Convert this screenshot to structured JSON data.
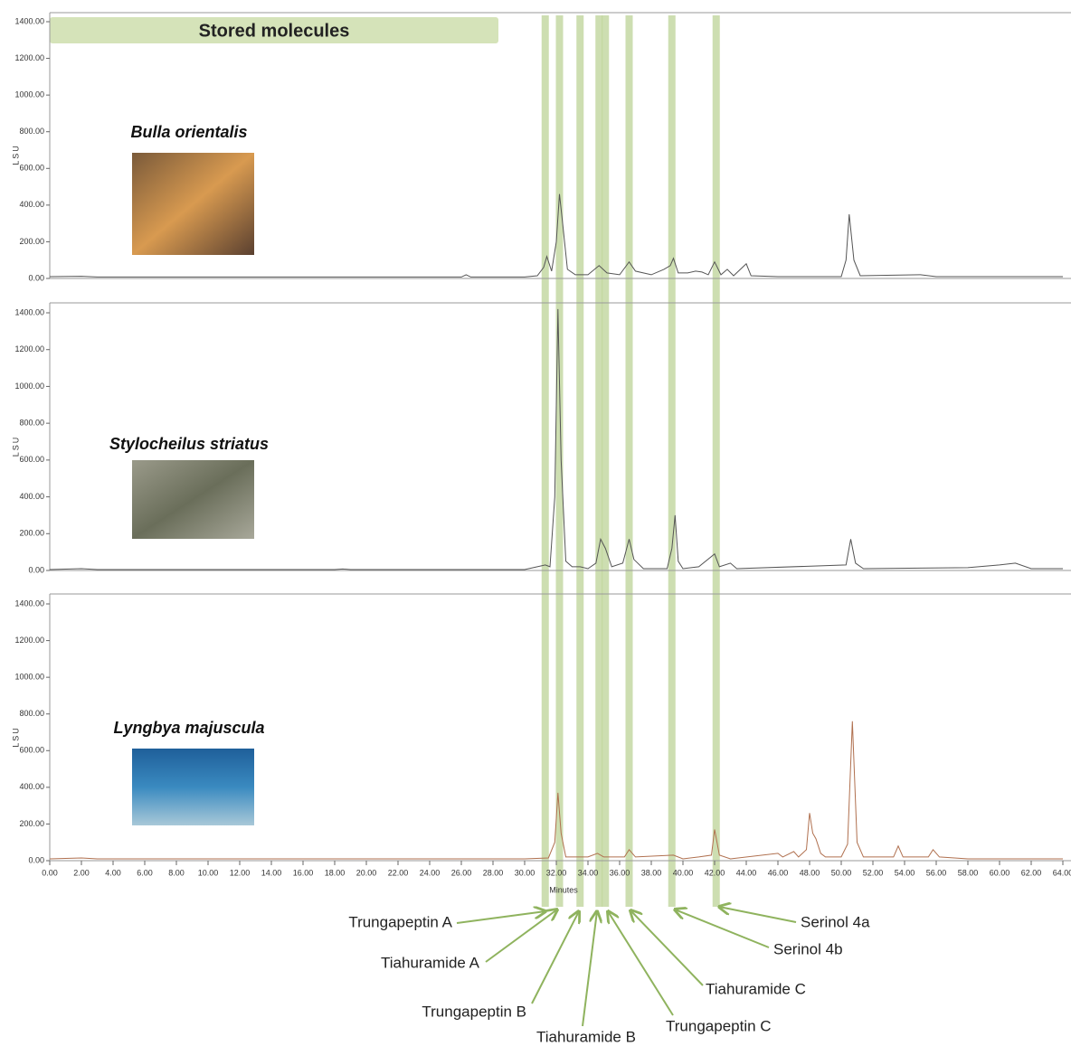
{
  "banner": "Stored molecules",
  "band_color": "#bcd397",
  "arrow_color": "#8fb35e",
  "compounds": [
    {
      "name": "Trungapeptin A",
      "time": 31.3
    },
    {
      "name": "Tiahuramide A",
      "time": 32.2
    },
    {
      "name": "Trungapeptin B",
      "time": 33.5
    },
    {
      "name": "Tiahuramide B",
      "time": 34.7
    },
    {
      "name": "Trungapeptin C",
      "time": 35.1
    },
    {
      "name": "Tiahuramide C",
      "time": 36.6
    },
    {
      "name": "Serinol 4b",
      "time": 39.3
    },
    {
      "name": "Serinol 4a",
      "time": 42.1
    }
  ],
  "chart_data": [
    {
      "type": "line",
      "title": "Bulla orientalis",
      "ylabel": "LSU",
      "color": "#555555",
      "xlim": [
        0,
        64
      ],
      "ylim": [
        0,
        1400
      ],
      "yticks": [
        {
          "value": 0,
          "label": "0.00"
        },
        {
          "value": 200,
          "label": "200.00"
        },
        {
          "value": 400,
          "label": "400.00"
        },
        {
          "value": 600,
          "label": "600.00"
        },
        {
          "value": 800,
          "label": "800.00"
        },
        {
          "value": 1000,
          "label": "1000.00"
        },
        {
          "value": 1200,
          "label": "1200.00"
        },
        {
          "value": 1400,
          "label": "1400.00"
        }
      ],
      "x": [
        0,
        2,
        3,
        10,
        20,
        26,
        26.3,
        26.6,
        30,
        30.8,
        31.2,
        31.4,
        31.7,
        32,
        32.2,
        32.4,
        32.7,
        33.2,
        34,
        34.7,
        35.2,
        36,
        36.6,
        37,
        38,
        38.8,
        39.2,
        39.4,
        39.7,
        40.3,
        40.8,
        41.2,
        41.6,
        42,
        42.4,
        42.8,
        43.2,
        44,
        44.3,
        46,
        50,
        50.3,
        50.5,
        50.8,
        51.2,
        55,
        56,
        64
      ],
      "values": [
        10,
        12,
        8,
        8,
        8,
        8,
        20,
        8,
        8,
        15,
        60,
        120,
        40,
        200,
        460,
        300,
        50,
        20,
        20,
        70,
        30,
        20,
        90,
        40,
        20,
        50,
        70,
        110,
        30,
        30,
        40,
        35,
        20,
        90,
        20,
        50,
        15,
        80,
        15,
        10,
        10,
        100,
        350,
        100,
        15,
        20,
        10,
        10
      ]
    },
    {
      "type": "line",
      "title": "Stylocheilus striatus",
      "ylabel": "LSU",
      "color": "#555555",
      "xlim": [
        0,
        64
      ],
      "ylim": [
        0,
        1400
      ],
      "yticks": [
        {
          "value": 0,
          "label": "0.00"
        },
        {
          "value": 200,
          "label": "200.00"
        },
        {
          "value": 400,
          "label": "400.00"
        },
        {
          "value": 600,
          "label": "600.00"
        },
        {
          "value": 800,
          "label": "800.00"
        },
        {
          "value": 1000,
          "label": "1000.00"
        },
        {
          "value": 1200,
          "label": "1200.00"
        },
        {
          "value": 1400,
          "label": "1400.00"
        }
      ],
      "x": [
        0,
        2,
        3,
        18,
        18.5,
        19,
        30,
        30.8,
        31.3,
        31.6,
        31.9,
        32.1,
        32.3,
        32.6,
        33,
        33.5,
        34,
        34.5,
        34.8,
        35.1,
        35.5,
        36.2,
        36.6,
        36.9,
        37.5,
        39,
        39.3,
        39.5,
        39.7,
        40,
        41,
        42,
        42.3,
        43,
        43.4,
        50.3,
        50.6,
        50.9,
        51.4,
        58,
        60,
        61,
        62,
        64
      ],
      "values": [
        5,
        10,
        5,
        5,
        8,
        5,
        5,
        20,
        30,
        20,
        400,
        1420,
        600,
        50,
        20,
        20,
        10,
        40,
        170,
        120,
        20,
        40,
        170,
        60,
        10,
        10,
        120,
        300,
        50,
        10,
        20,
        90,
        20,
        40,
        10,
        30,
        170,
        40,
        10,
        15,
        30,
        40,
        10,
        10
      ]
    },
    {
      "type": "line",
      "title": "Lyngbya majuscula",
      "ylabel": "LSU",
      "xlabel": "Minutes",
      "color": "#b0704f",
      "xlim": [
        0,
        64
      ],
      "ylim": [
        0,
        1400
      ],
      "yticks": [
        {
          "value": 0,
          "label": "0.00"
        },
        {
          "value": 200,
          "label": "200.00"
        },
        {
          "value": 400,
          "label": "400.00"
        },
        {
          "value": 600,
          "label": "600.00"
        },
        {
          "value": 800,
          "label": "800.00"
        },
        {
          "value": 1000,
          "label": "1000.00"
        },
        {
          "value": 1200,
          "label": "1200.00"
        },
        {
          "value": 1400,
          "label": "1400.00"
        }
      ],
      "xticks": [
        {
          "value": 0,
          "label": "0.00"
        },
        {
          "value": 2,
          "label": "2.00"
        },
        {
          "value": 4,
          "label": "4.00"
        },
        {
          "value": 6,
          "label": "6.00"
        },
        {
          "value": 8,
          "label": "8.00"
        },
        {
          "value": 10,
          "label": "10.00"
        },
        {
          "value": 12,
          "label": "12.00"
        },
        {
          "value": 14,
          "label": "14.00"
        },
        {
          "value": 16,
          "label": "16.00"
        },
        {
          "value": 18,
          "label": "18.00"
        },
        {
          "value": 20,
          "label": "20.00"
        },
        {
          "value": 22,
          "label": "22.00"
        },
        {
          "value": 24,
          "label": "24.00"
        },
        {
          "value": 26,
          "label": "26.00"
        },
        {
          "value": 28,
          "label": "28.00"
        },
        {
          "value": 30,
          "label": "30.00"
        },
        {
          "value": 32,
          "label": "32.00"
        },
        {
          "value": 34,
          "label": "34.00"
        },
        {
          "value": 36,
          "label": "36.00"
        },
        {
          "value": 38,
          "label": "38.00"
        },
        {
          "value": 40,
          "label": "40.00"
        },
        {
          "value": 42,
          "label": "42.00"
        },
        {
          "value": 44,
          "label": "44.00"
        },
        {
          "value": 46,
          "label": "46.00"
        },
        {
          "value": 48,
          "label": "48.00"
        },
        {
          "value": 50,
          "label": "50.00"
        },
        {
          "value": 52,
          "label": "52.00"
        },
        {
          "value": 54,
          "label": "54.00"
        },
        {
          "value": 56,
          "label": "56.00"
        },
        {
          "value": 58,
          "label": "58.00"
        },
        {
          "value": 60,
          "label": "60.00"
        },
        {
          "value": 62,
          "label": "62.00"
        },
        {
          "value": 64,
          "label": "64.00"
        }
      ],
      "x": [
        0,
        2,
        3,
        30,
        31.5,
        31.9,
        32.1,
        32.3,
        32.6,
        34,
        34.6,
        35,
        36.3,
        36.6,
        37,
        39.4,
        40,
        41,
        41.8,
        42,
        42.3,
        43,
        46,
        46.3,
        47,
        47.3,
        47.8,
        48,
        48.2,
        48.4,
        48.7,
        49,
        50,
        50.4,
        50.7,
        51,
        51.4,
        53.3,
        53.6,
        53.9,
        55.5,
        55.8,
        56.2,
        58,
        64
      ],
      "values": [
        10,
        15,
        10,
        10,
        15,
        100,
        370,
        150,
        20,
        20,
        40,
        20,
        20,
        60,
        20,
        30,
        10,
        20,
        30,
        170,
        30,
        10,
        40,
        20,
        50,
        20,
        60,
        260,
        150,
        120,
        40,
        20,
        20,
        90,
        760,
        100,
        20,
        20,
        80,
        20,
        20,
        60,
        20,
        10,
        10
      ]
    }
  ]
}
